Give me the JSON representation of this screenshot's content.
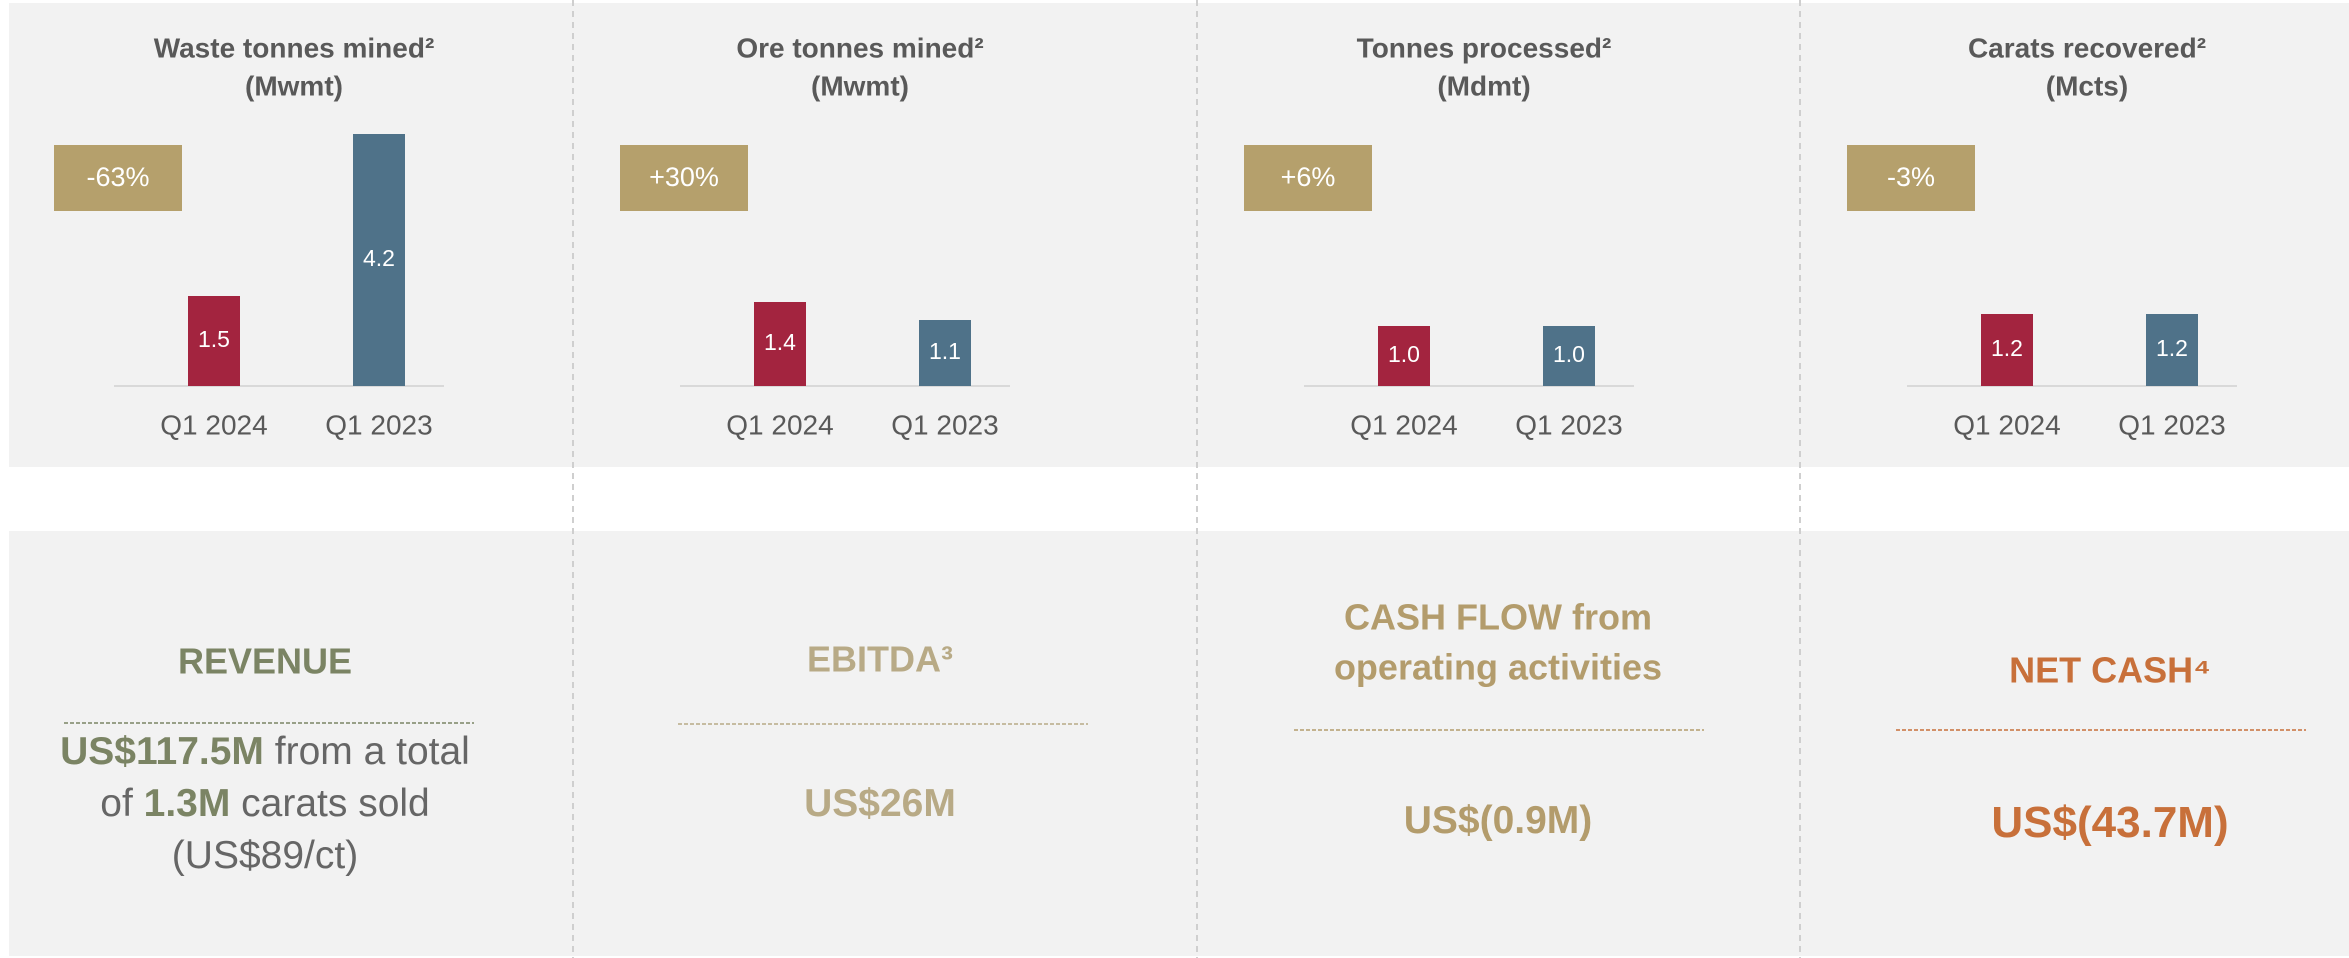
{
  "chart_data": [
    {
      "type": "bar",
      "title": "Waste tonnes mined²",
      "subtitle": "(Mwmt)",
      "badge": "-63%",
      "categories": [
        "Q1 2024",
        "Q1 2023"
      ],
      "values": [
        1.5,
        4.2
      ],
      "colors": [
        "#a3243f",
        "#4f7289"
      ],
      "ylim": [
        0,
        4.5
      ]
    },
    {
      "type": "bar",
      "title": "Ore tonnes mined²",
      "subtitle": "(Mwmt)",
      "badge": "+30%",
      "categories": [
        "Q1 2024",
        "Q1 2023"
      ],
      "values": [
        1.4,
        1.1
      ],
      "colors": [
        "#a3243f",
        "#4f7289"
      ],
      "ylim": [
        0,
        4.5
      ]
    },
    {
      "type": "bar",
      "title": "Tonnes processed²",
      "subtitle": "(Mdmt)",
      "badge": "+6%",
      "categories": [
        "Q1 2024",
        "Q1 2023"
      ],
      "values": [
        1.0,
        1.0
      ],
      "value_labels": [
        "1.0",
        "1.0"
      ],
      "colors": [
        "#a3243f",
        "#4f7289"
      ],
      "ylim": [
        0,
        4.5
      ]
    },
    {
      "type": "bar",
      "title": "Carats recovered²",
      "subtitle": "(Mcts)",
      "badge": "-3%",
      "categories": [
        "Q1 2024",
        "Q1 2023"
      ],
      "values": [
        1.2,
        1.2
      ],
      "colors": [
        "#a3243f",
        "#4f7289"
      ],
      "ylim": [
        0,
        4.5
      ]
    }
  ],
  "kpis": [
    {
      "title": [
        "REVENUE"
      ],
      "color": "#7b8464",
      "lines": [
        [
          {
            "text": "US$117.5M",
            "bold": true
          },
          {
            "text": " from a total"
          }
        ],
        [
          {
            "text": "of "
          },
          {
            "text": "1.3M",
            "bold": true
          },
          {
            "text": " carats sold"
          }
        ],
        [
          {
            "text": "(US$89/ct)"
          }
        ]
      ]
    },
    {
      "title": [
        "EBITDA³"
      ],
      "color": "#b8aa86",
      "lines": [
        [
          {
            "text": "US$26M",
            "bold": true
          }
        ]
      ]
    },
    {
      "title": [
        "CASH FLOW from",
        "operating activities"
      ],
      "color": "#b39c6c",
      "lines": [
        [
          {
            "text": "US$(0.9M)",
            "bold": true
          }
        ]
      ]
    },
    {
      "title": [
        "NET CASH⁴"
      ],
      "color": "#c8703a",
      "lines": [
        [
          {
            "text": "US$(43.7M)",
            "bold": true
          }
        ]
      ]
    }
  ]
}
